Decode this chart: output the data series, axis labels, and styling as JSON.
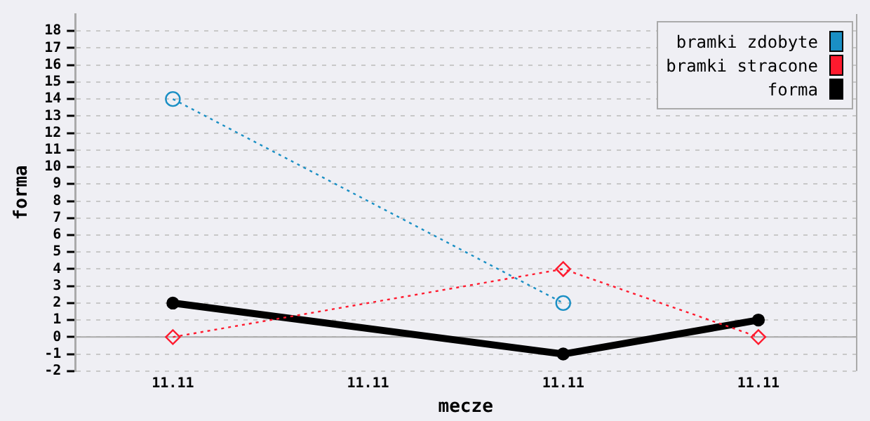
{
  "chart_data": {
    "type": "line",
    "xlabel": "mecze",
    "ylabel": "forma",
    "categories": [
      "11.11",
      "11.11",
      "11.11",
      "11.11"
    ],
    "ylim": [
      -2,
      19
    ],
    "yticks": [
      -2,
      -1,
      0,
      1,
      2,
      3,
      4,
      5,
      6,
      7,
      8,
      9,
      10,
      11,
      12,
      13,
      14,
      15,
      16,
      17,
      18
    ],
    "grid": "y",
    "legend": "top right",
    "ref_lines": [
      {
        "axis": "y",
        "value": 0,
        "color": "#aaaaaa"
      }
    ],
    "series": [
      {
        "name": "bramki zdobyte",
        "color": "#1a8fc4",
        "values": [
          14,
          null,
          2,
          null
        ],
        "marker": "circle",
        "line_style": "dotted"
      },
      {
        "name": "bramki stracone",
        "color": "#ff1a2e",
        "values": [
          0,
          null,
          4,
          0
        ],
        "marker": "diamond",
        "line_style": "dotted"
      },
      {
        "name": "forma",
        "color": "#000000",
        "values": [
          2,
          null,
          -1,
          1
        ],
        "marker": "circle",
        "line_style": "solid"
      }
    ]
  }
}
